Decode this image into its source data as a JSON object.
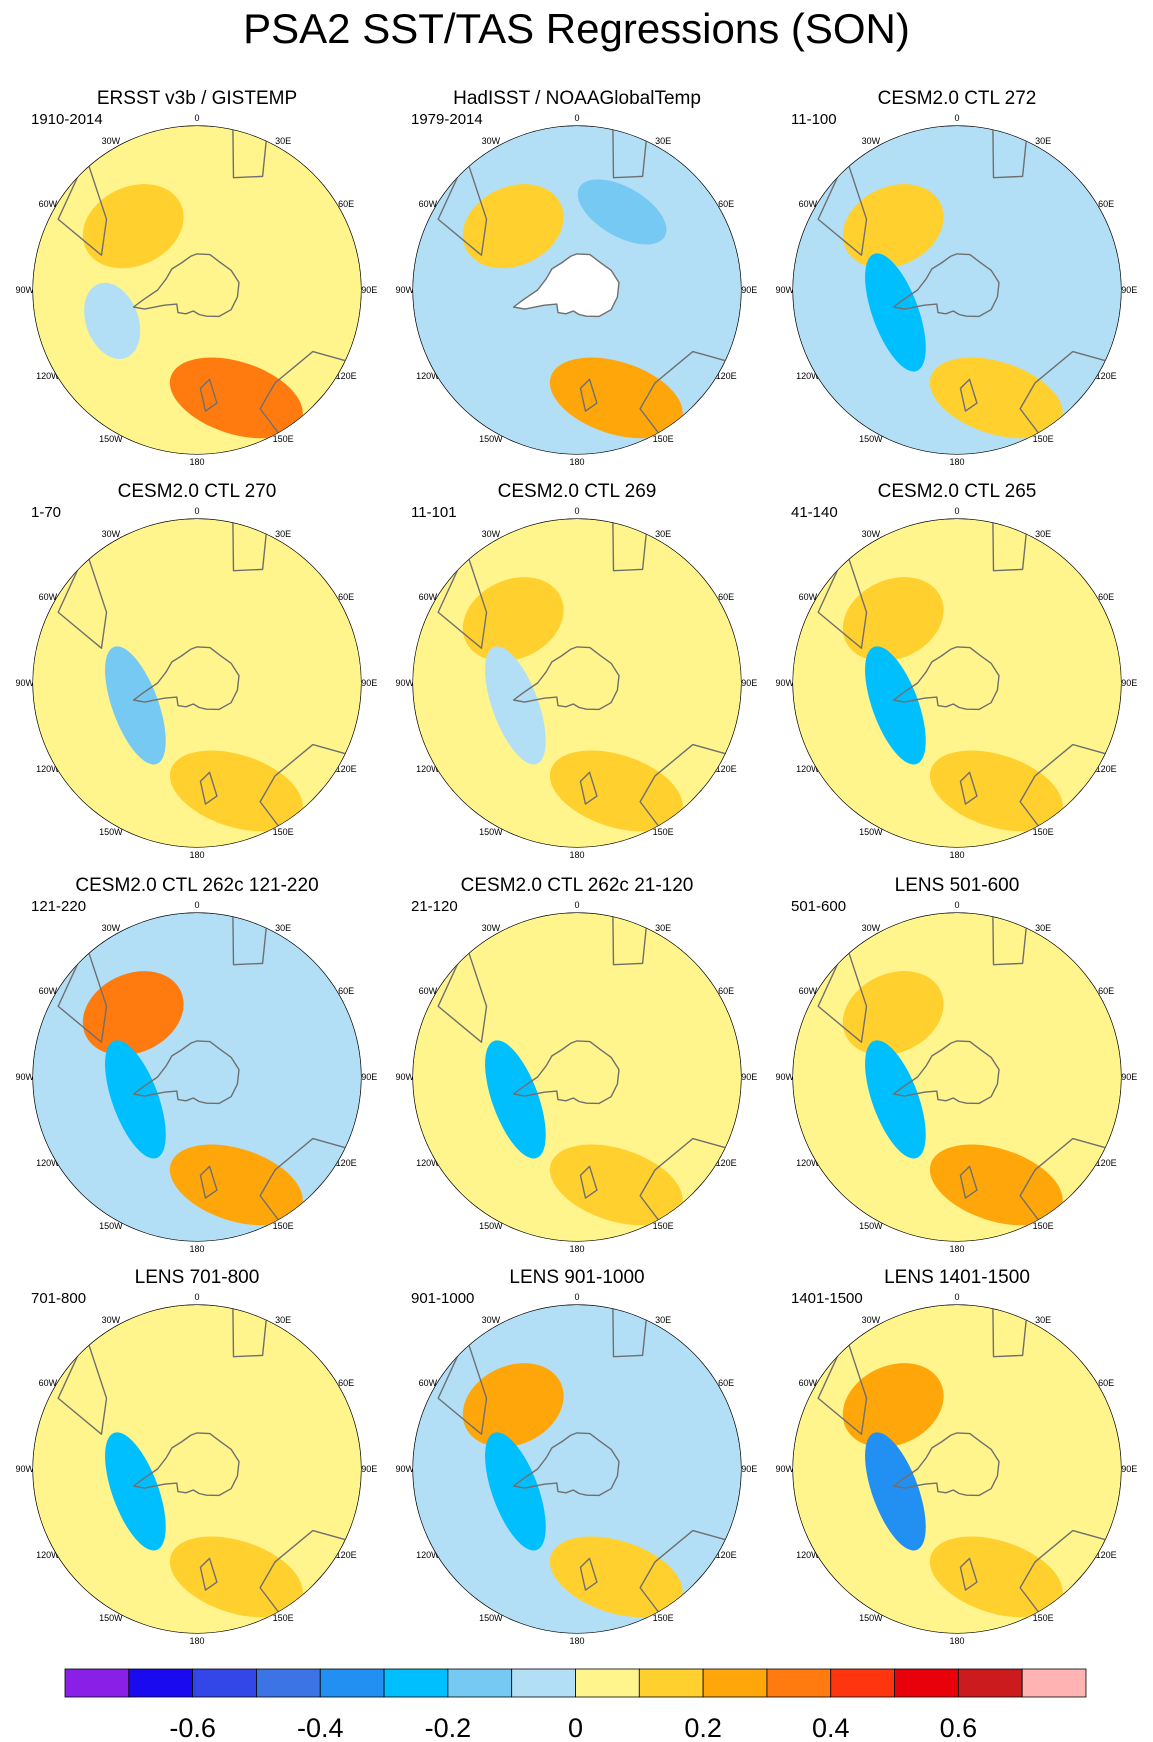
{
  "title": "PSA2 SST/TAS Regressions (SON)",
  "colors": {
    "land": "#ffffff",
    "coast": "#6f6f6f",
    "border": "#000000"
  },
  "longitude_labels": [
    "0",
    "30E",
    "60E",
    "90E",
    "120E",
    "150E",
    "180",
    "150W",
    "120W",
    "90W",
    "60W",
    "30W"
  ],
  "chart_data": {
    "type": "polar-contour-map-grid",
    "projection": "south-polar-stereographic",
    "panels": [
      {
        "title": "ERSST v3b / GISTEMP",
        "period": "1910-2014",
        "levels": {
          "background": 0.05,
          "anomalies": [
            {
              "region": "south-pacific",
              "value": 0.3
            },
            {
              "region": "atlantic",
              "value": 0.15
            },
            {
              "region": "drake",
              "value": -0.1
            }
          ]
        }
      },
      {
        "title": "HadISST / NOAAGlobalTemp",
        "period": "1979-2014",
        "levels": {
          "background": -0.05,
          "anomalies": [
            {
              "region": "south-pacific",
              "value": 0.25
            },
            {
              "region": "indian",
              "value": -0.15
            },
            {
              "region": "atlantic",
              "value": 0.1
            }
          ]
        }
      },
      {
        "title": "CESM2.0 CTL 272",
        "period": "11-100",
        "levels": {
          "background": -0.05,
          "anomalies": [
            {
              "region": "atlantic",
              "value": 0.15
            },
            {
              "region": "south-pacific",
              "value": 0.15
            },
            {
              "region": "amundsen",
              "value": -0.25
            }
          ]
        }
      },
      {
        "title": "CESM2.0 CTL 270",
        "period": "1-70",
        "levels": {
          "background": 0.05,
          "anomalies": [
            {
              "region": "amundsen",
              "value": -0.15
            },
            {
              "region": "south-pacific",
              "value": 0.15
            }
          ]
        }
      },
      {
        "title": "CESM2.0 CTL 269",
        "period": "11-101",
        "levels": {
          "background": 0.05,
          "anomalies": [
            {
              "region": "atlantic",
              "value": 0.15
            },
            {
              "region": "south-pacific",
              "value": 0.15
            },
            {
              "region": "amundsen",
              "value": -0.05
            }
          ]
        }
      },
      {
        "title": "CESM2.0 CTL 265",
        "period": "41-140",
        "levels": {
          "background": 0.05,
          "anomalies": [
            {
              "region": "atlantic",
              "value": 0.15
            },
            {
              "region": "amundsen",
              "value": -0.25
            },
            {
              "region": "south-pacific",
              "value": 0.15
            }
          ]
        }
      },
      {
        "title": "CESM2.0 CTL 262c 121-220",
        "period": "121-220",
        "levels": {
          "background": -0.05,
          "anomalies": [
            {
              "region": "atlantic",
              "value": 0.3
            },
            {
              "region": "south-pacific",
              "value": 0.25
            },
            {
              "region": "amundsen",
              "value": -0.25
            }
          ]
        }
      },
      {
        "title": "CESM2.0 CTL 262c 21-120",
        "period": "21-120",
        "levels": {
          "background": 0.05,
          "anomalies": [
            {
              "region": "south-pacific",
              "value": 0.15
            },
            {
              "region": "amundsen",
              "value": -0.25
            }
          ]
        }
      },
      {
        "title": "LENS 501-600",
        "period": "501-600",
        "levels": {
          "background": 0.05,
          "anomalies": [
            {
              "region": "atlantic",
              "value": 0.15
            },
            {
              "region": "south-pacific",
              "value": 0.25
            },
            {
              "region": "amundsen",
              "value": -0.25
            }
          ]
        }
      },
      {
        "title": "LENS 701-800",
        "period": "701-800",
        "levels": {
          "background": 0.05,
          "anomalies": [
            {
              "region": "south-pacific",
              "value": 0.15
            },
            {
              "region": "amundsen",
              "value": -0.25
            }
          ]
        }
      },
      {
        "title": "LENS 901-1000",
        "period": "901-1000",
        "levels": {
          "background": -0.05,
          "anomalies": [
            {
              "region": "atlantic",
              "value": 0.25
            },
            {
              "region": "south-pacific",
              "value": 0.15
            },
            {
              "region": "amundsen",
              "value": -0.25
            }
          ]
        }
      },
      {
        "title": "LENS 1401-1500",
        "period": "1401-1500",
        "levels": {
          "background": 0.05,
          "anomalies": [
            {
              "region": "atlantic",
              "value": 0.25
            },
            {
              "region": "south-pacific",
              "value": 0.15
            },
            {
              "region": "amundsen",
              "value": -0.35
            }
          ]
        }
      }
    ],
    "colorbar": {
      "min": -0.8,
      "max": 0.8,
      "interval": 0.1,
      "colors": [
        "#8a20e8",
        "#1a0af0",
        "#3346e8",
        "#3c74e6",
        "#2190f2",
        "#00bfff",
        "#75c9f2",
        "#b2dff5",
        "#fff58c",
        "#ffd02e",
        "#ffa60a",
        "#ff7a0f",
        "#ff3510",
        "#e8000b",
        "#cc1b1e",
        "#ffb3b3"
      ],
      "tick_values": [
        -0.6,
        -0.4,
        -0.2,
        0,
        0.2,
        0.4,
        0.6
      ],
      "tick_labels": [
        "-0.6",
        "-0.4",
        "-0.2",
        "0",
        "0.2",
        "0.4",
        "0.6"
      ]
    }
  }
}
